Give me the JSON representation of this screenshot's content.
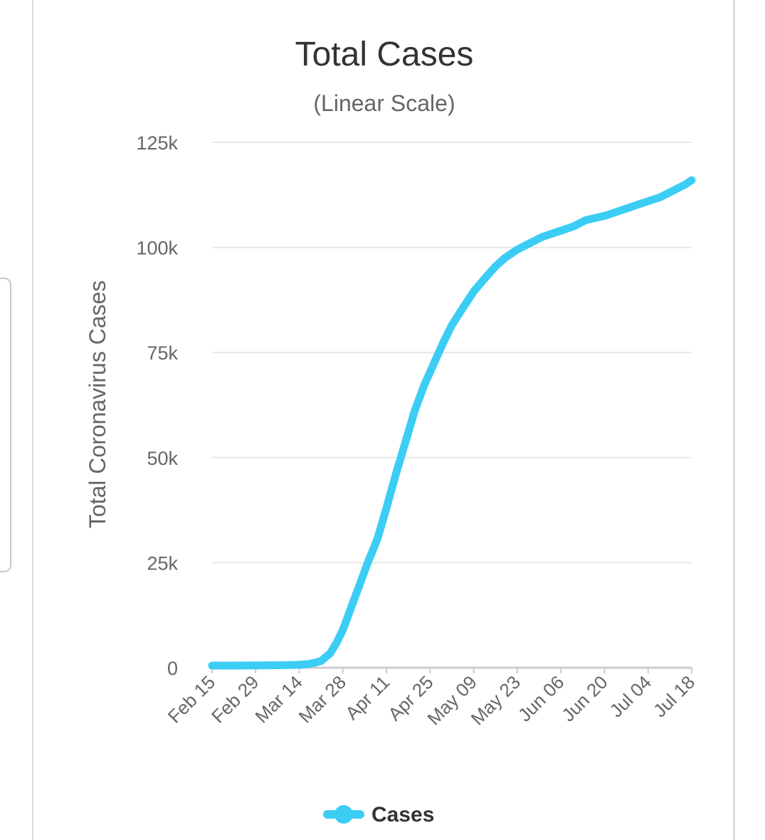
{
  "chart_data": {
    "type": "line",
    "title": "Total Cases",
    "subtitle": "(Linear Scale)",
    "xlabel": "",
    "ylabel": "Total Coronavirus Cases",
    "ylim": [
      0,
      125000
    ],
    "y_ticks": [
      {
        "value": 0,
        "label": "0"
      },
      {
        "value": 25000,
        "label": "25k"
      },
      {
        "value": 50000,
        "label": "50k"
      },
      {
        "value": 75000,
        "label": "75k"
      },
      {
        "value": 100000,
        "label": "100k"
      },
      {
        "value": 125000,
        "label": "125k"
      }
    ],
    "x_ticks": [
      {
        "day": 0,
        "label": "Feb 15"
      },
      {
        "day": 14,
        "label": "Feb 29"
      },
      {
        "day": 28,
        "label": "Mar 14"
      },
      {
        "day": 42,
        "label": "Mar 28"
      },
      {
        "day": 56,
        "label": "Apr 11"
      },
      {
        "day": 70,
        "label": "Apr 25"
      },
      {
        "day": 84,
        "label": "May 09"
      },
      {
        "day": 98,
        "label": "May 23"
      },
      {
        "day": 112,
        "label": "Jun 06"
      },
      {
        "day": 126,
        "label": "Jun 20"
      },
      {
        "day": 140,
        "label": "Jul 04"
      },
      {
        "day": 154,
        "label": "Jul 18"
      }
    ],
    "x_range": [
      0,
      154
    ],
    "series": [
      {
        "name": "Cases",
        "color": "#3ccdf5",
        "x": [
          0,
          7,
          14,
          21,
          25,
          28,
          31,
          33,
          35,
          38,
          40,
          42,
          44,
          46,
          48,
          50,
          53,
          56,
          59,
          62,
          65,
          68,
          71,
          74,
          76,
          77,
          80,
          84,
          88,
          91,
          94,
          98,
          102,
          106,
          110,
          112,
          116,
          120,
          126,
          130,
          134,
          138,
          140,
          144,
          148,
          152,
          154
        ],
        "values": [
          500,
          500,
          550,
          600,
          650,
          700,
          900,
          1200,
          1600,
          3500,
          6000,
          9000,
          13000,
          17000,
          21000,
          25000,
          30500,
          38000,
          46000,
          53500,
          61000,
          67000,
          72000,
          77000,
          80000,
          81500,
          85000,
          89500,
          93000,
          95500,
          97500,
          99500,
          101000,
          102500,
          103500,
          104000,
          105000,
          106500,
          107500,
          108500,
          109500,
          110500,
          111000,
          112000,
          113500,
          115000,
          116000
        ]
      }
    ],
    "legend": {
      "position": "bottom-center",
      "entries": [
        "Cases"
      ]
    },
    "grid": true
  }
}
